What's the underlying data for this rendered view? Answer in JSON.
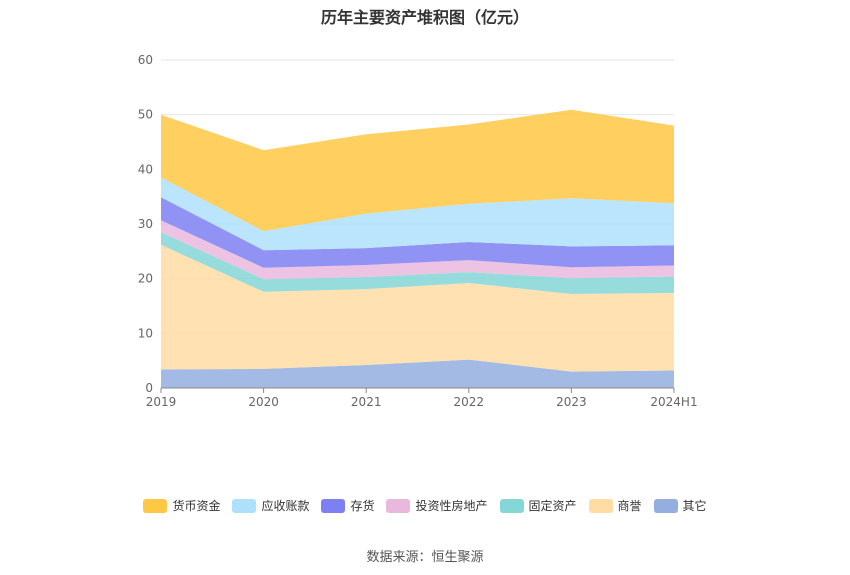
{
  "chart_data": {
    "type": "area",
    "stacked": true,
    "title": "历年主要资产堆积图（亿元）",
    "categories": [
      "2019",
      "2020",
      "2021",
      "2022",
      "2023",
      "2024H1"
    ],
    "ylim": [
      0,
      60
    ],
    "yticks": [
      0,
      10,
      20,
      30,
      40,
      50,
      60
    ],
    "series": [
      {
        "name": "货币资金",
        "color": "#ffc844",
        "values": [
          11.5,
          14.8,
          14.5,
          14.5,
          16.2,
          14.2
        ]
      },
      {
        "name": "应收账款",
        "color": "#aee0fb",
        "values": [
          3.6,
          3.5,
          6.3,
          7.0,
          8.8,
          7.7
        ]
      },
      {
        "name": "存货",
        "color": "#7c80f2",
        "values": [
          4.2,
          3.2,
          3.1,
          3.3,
          3.8,
          3.7
        ]
      },
      {
        "name": "投资性房地产",
        "color": "#e9b9dd",
        "values": [
          2.2,
          2.1,
          2.2,
          2.2,
          2.0,
          2.0
        ]
      },
      {
        "name": "固定资产",
        "color": "#85d6d6",
        "values": [
          2.3,
          2.3,
          2.2,
          2.0,
          2.9,
          3.0
        ]
      },
      {
        "name": "商誉",
        "color": "#ffdca4",
        "values": [
          22.8,
          14.1,
          13.9,
          14.0,
          14.2,
          14.2
        ]
      },
      {
        "name": "其它",
        "color": "#93aedf",
        "values": [
          3.4,
          3.5,
          4.2,
          5.2,
          3.0,
          3.2
        ]
      }
    ],
    "legend_position": "bottom",
    "grid": true
  },
  "source": "数据来源：恒生聚源"
}
